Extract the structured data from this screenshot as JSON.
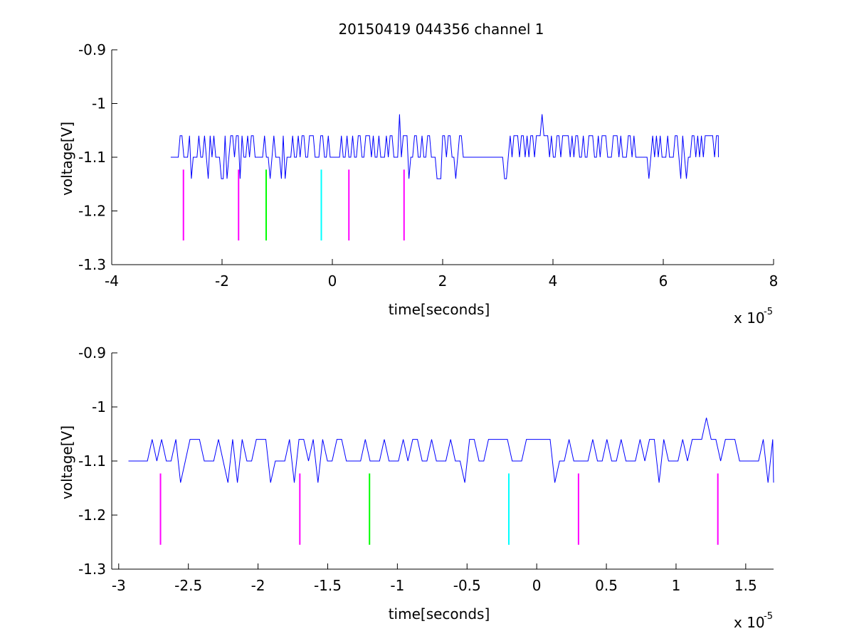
{
  "figure": {
    "title": "20150419 044356 channel 1"
  },
  "chart_data": [
    {
      "type": "line",
      "title": "20150419 044356 channel 1",
      "xlabel": "time[seconds]",
      "ylabel": "voltage[V]",
      "x_multiplier_label": "x 10",
      "x_multiplier_exponent": "-5",
      "xlim": [
        -4,
        8
      ],
      "ylim": [
        -1.3,
        -0.9
      ],
      "x_ticks": [
        -4,
        -2,
        0,
        2,
        4,
        6,
        8
      ],
      "x_tick_labels": [
        "-4",
        "-2",
        "0",
        "2",
        "4",
        "6",
        "8"
      ],
      "y_ticks": [
        -1.3,
        -1.2,
        -1.1,
        -1.0,
        -0.9
      ],
      "y_tick_labels": [
        "-1.3",
        "-1.2",
        "-1.1",
        "-1",
        "-0.9"
      ],
      "grid": false,
      "series": [
        {
          "color": "#0000ff",
          "signal": {
            "x_start": -2.93,
            "x_end": 7.0,
            "baseline": -1.1,
            "high_level": -1.06,
            "low_level": -1.14,
            "gap": [
              2.35,
              3.0
            ],
            "spikes": [
              [
                1.23,
                -1.02
              ],
              [
                3.8,
                -1.02
              ]
            ],
            "x_precision": "approx (dense pulse train)"
          }
        }
      ],
      "markers": [
        {
          "x": -2.7,
          "y_top": -1.123,
          "y_bottom": -1.255,
          "color": "#ff00ff"
        },
        {
          "x": -1.7,
          "y_top": -1.123,
          "y_bottom": -1.255,
          "color": "#ff00ff"
        },
        {
          "x": -1.2,
          "y_top": -1.123,
          "y_bottom": -1.255,
          "color": "#00ff00"
        },
        {
          "x": -0.2,
          "y_top": -1.123,
          "y_bottom": -1.255,
          "color": "#00ffff"
        },
        {
          "x": 0.3,
          "y_top": -1.123,
          "y_bottom": -1.255,
          "color": "#ff00ff"
        },
        {
          "x": 1.3,
          "y_top": -1.123,
          "y_bottom": -1.255,
          "color": "#ff00ff"
        }
      ]
    },
    {
      "type": "line",
      "title": "",
      "xlabel": "time[seconds]",
      "ylabel": "voltage[V]",
      "x_multiplier_label": "x 10",
      "x_multiplier_exponent": "-5",
      "xlim": [
        -3.05,
        1.7
      ],
      "ylim": [
        -1.3,
        -0.9
      ],
      "x_ticks": [
        -3,
        -2.5,
        -2,
        -1.5,
        -1,
        -0.5,
        0,
        0.5,
        1,
        1.5
      ],
      "x_tick_labels": [
        "-3",
        "-2.5",
        "-2",
        "-1.5",
        "-1",
        "-0.5",
        "0",
        "0.5",
        "1",
        "1.5"
      ],
      "y_ticks": [
        -1.3,
        -1.2,
        -1.1,
        -1.0,
        -0.9
      ],
      "y_tick_labels": [
        "-1.3",
        "-1.2",
        "-1.1",
        "-1",
        "-0.9"
      ],
      "grid": false,
      "series": [
        {
          "color": "#0000ff",
          "signal": {
            "x_start": -2.93,
            "x_end": 1.7,
            "baseline": -1.1,
            "high_level": -1.06,
            "low_level": -1.14,
            "spikes": [
              [
                1.22,
                -1.02
              ]
            ],
            "x_precision": "approx (dense pulse train)"
          }
        }
      ],
      "markers": [
        {
          "x": -2.7,
          "y_top": -1.123,
          "y_bottom": -1.255,
          "color": "#ff00ff"
        },
        {
          "x": -1.7,
          "y_top": -1.123,
          "y_bottom": -1.255,
          "color": "#ff00ff"
        },
        {
          "x": -1.2,
          "y_top": -1.123,
          "y_bottom": -1.255,
          "color": "#00ff00"
        },
        {
          "x": -0.2,
          "y_top": -1.123,
          "y_bottom": -1.255,
          "color": "#00ffff"
        },
        {
          "x": 0.3,
          "y_top": -1.123,
          "y_bottom": -1.255,
          "color": "#ff00ff"
        },
        {
          "x": 1.3,
          "y_top": -1.123,
          "y_bottom": -1.255,
          "color": "#ff00ff"
        }
      ]
    }
  ]
}
